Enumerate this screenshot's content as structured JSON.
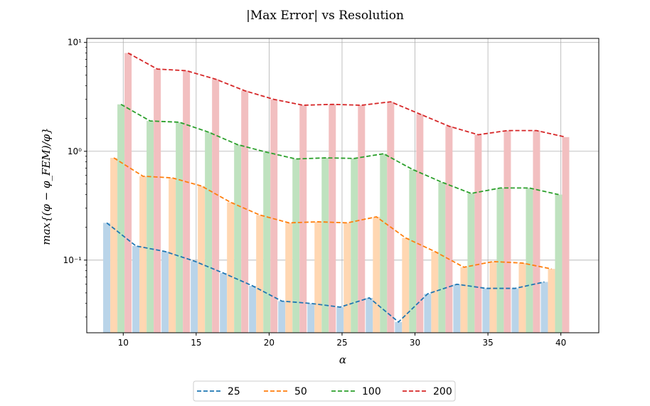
{
  "chart_data": {
    "type": "bar",
    "title": "|Max Error| vs Resolution",
    "xlabel": "α",
    "ylabel": "max{(φ − φ_FEM)/φ}",
    "yscale": "log",
    "xlim": [
      7.5,
      42.6
    ],
    "ylim": [
      0.0215,
      10.9
    ],
    "xticks": [
      10,
      15,
      20,
      25,
      30,
      35,
      40
    ],
    "yticks": [
      {
        "value": 0.1,
        "label": "10⁻¹"
      },
      {
        "value": 1,
        "label": "10⁰"
      },
      {
        "value": 10,
        "label": "10¹"
      }
    ],
    "grid": true,
    "legend_position": "bottom-center",
    "x": [
      9.6,
      11.6,
      13.6,
      15.6,
      17.6,
      19.6,
      21.6,
      23.6,
      25.6,
      27.6,
      29.6,
      31.6,
      33.6,
      35.6,
      37.6,
      39.6
    ],
    "series": [
      {
        "name": "25",
        "color": "#1f77b4",
        "bar_color": "#b9d4e9",
        "values": [
          0.22,
          0.135,
          0.12,
          0.098,
          0.076,
          0.058,
          0.042,
          0.04,
          0.037,
          0.045,
          0.027,
          0.049,
          0.06,
          0.055,
          0.055,
          0.063
        ]
      },
      {
        "name": "50",
        "color": "#ff7f0e",
        "bar_color": "#ffd7b2",
        "values": [
          0.87,
          0.59,
          0.57,
          0.48,
          0.34,
          0.26,
          0.22,
          0.225,
          0.22,
          0.25,
          0.16,
          0.12,
          0.086,
          0.097,
          0.094,
          0.083
        ]
      },
      {
        "name": "100",
        "color": "#2ca02c",
        "bar_color": "#bfe2bf",
        "values": [
          2.7,
          1.9,
          1.85,
          1.5,
          1.15,
          0.98,
          0.85,
          0.87,
          0.86,
          0.95,
          0.68,
          0.52,
          0.41,
          0.46,
          0.46,
          0.4
        ]
      },
      {
        "name": "200",
        "color": "#d62728",
        "bar_color": "#f2bfc0",
        "values": [
          8.0,
          5.7,
          5.5,
          4.6,
          3.6,
          3.0,
          2.65,
          2.7,
          2.65,
          2.85,
          2.2,
          1.7,
          1.42,
          1.55,
          1.55,
          1.35
        ]
      }
    ]
  }
}
